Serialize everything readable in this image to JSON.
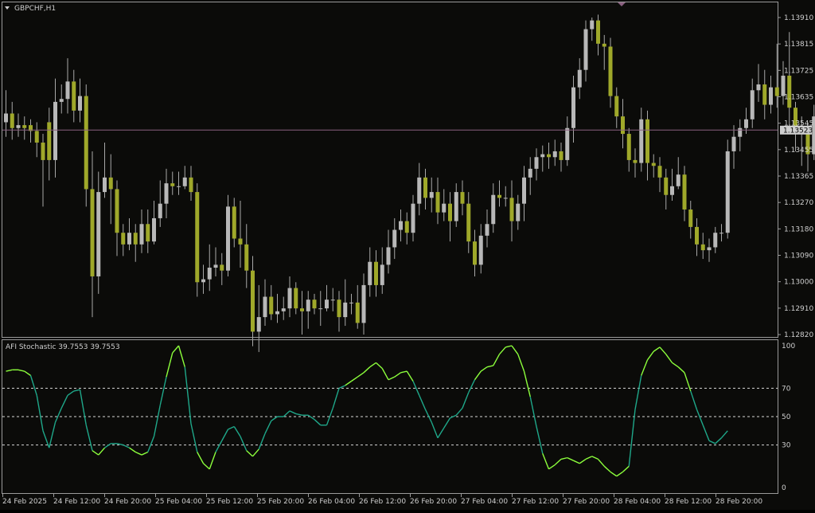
{
  "window": {
    "symbol_label": "GBPCHF,H1",
    "current_price_label": "1.13523"
  },
  "colors": {
    "background": "#0b0b09",
    "frame": "#9a9a9a",
    "text": "#cfcfcf",
    "bull_candle": "#b8b8b8",
    "bear_candle": "#9fa82a",
    "wick": "#a8a8a8",
    "price_line": "#8a6080",
    "stoch_main": "#1fa88a",
    "stoch_highlight": "#8cff3c",
    "level_line": "#d8d8d8"
  },
  "chart_data": [
    {
      "type": "candlestick",
      "title": "GBPCHF,H1",
      "ylim": [
        1.1282,
        1.1391
      ],
      "y_ticks": [
        "1.13910",
        "1.13815",
        "1.13725",
        "1.13635",
        "1.13545",
        "1.13455",
        "1.13365",
        "1.13270",
        "1.13180",
        "1.13090",
        "1.13000",
        "1.12910",
        "1.12820"
      ],
      "current_price": 1.13523,
      "candles": [
        [
          1.1355,
          1.1358,
          1.1366,
          1.135
        ],
        [
          1.1358,
          1.1353,
          1.1362,
          1.1349
        ],
        [
          1.1353,
          1.1354,
          1.1358,
          1.135
        ],
        [
          1.1354,
          1.1353,
          1.1357,
          1.1349
        ],
        [
          1.1354,
          1.1352,
          1.1356,
          1.1348
        ],
        [
          1.1352,
          1.1348,
          1.1355,
          1.1343
        ],
        [
          1.1348,
          1.1342,
          1.1351,
          1.1326
        ],
        [
          1.1355,
          1.1342,
          1.136,
          1.1335
        ],
        [
          1.1342,
          1.1362,
          1.137,
          1.1336
        ],
        [
          1.1362,
          1.1363,
          1.1368,
          1.1358
        ],
        [
          1.1363,
          1.1369,
          1.1377,
          1.1358
        ],
        [
          1.1369,
          1.1359,
          1.1373,
          1.1355
        ],
        [
          1.1359,
          1.1364,
          1.137,
          1.1355
        ],
        [
          1.1364,
          1.1332,
          1.1368,
          1.1326
        ],
        [
          1.1332,
          1.1302,
          1.1345,
          1.1288
        ],
        [
          1.1302,
          1.1331,
          1.1338,
          1.1296
        ],
        [
          1.1331,
          1.1336,
          1.1348,
          1.1329
        ],
        [
          1.1336,
          1.1332,
          1.1344,
          1.132
        ],
        [
          1.1332,
          1.1317,
          1.1335,
          1.1309
        ],
        [
          1.1317,
          1.1313,
          1.132,
          1.1309
        ],
        [
          1.1313,
          1.1317,
          1.1322,
          1.1311
        ],
        [
          1.1317,
          1.1313,
          1.132,
          1.1307
        ],
        [
          1.1313,
          1.132,
          1.1325,
          1.131
        ],
        [
          1.132,
          1.1314,
          1.1325,
          1.131
        ],
        [
          1.1314,
          1.1322,
          1.1328,
          1.1313
        ],
        [
          1.1322,
          1.1327,
          1.1335,
          1.1319
        ],
        [
          1.1327,
          1.1334,
          1.1339,
          1.1322
        ],
        [
          1.1334,
          1.1333,
          1.1338,
          1.133
        ],
        [
          1.1333,
          1.1333,
          1.1338,
          1.133
        ],
        [
          1.1333,
          1.1336,
          1.134,
          1.1332
        ],
        [
          1.1336,
          1.1331,
          1.134,
          1.1328
        ],
        [
          1.1331,
          1.13,
          1.1334,
          1.1295
        ],
        [
          1.13,
          1.1301,
          1.1306,
          1.1296
        ],
        [
          1.1301,
          1.1305,
          1.1313,
          1.1297
        ],
        [
          1.1305,
          1.1306,
          1.1312,
          1.1302
        ],
        [
          1.1306,
          1.1304,
          1.131,
          1.1299
        ],
        [
          1.1304,
          1.1326,
          1.133,
          1.1302
        ],
        [
          1.1326,
          1.1315,
          1.1329,
          1.1312
        ],
        [
          1.1315,
          1.1313,
          1.1328,
          1.1305
        ],
        [
          1.1313,
          1.1304,
          1.132,
          1.1298
        ],
        [
          1.1304,
          1.1283,
          1.1309,
          1.1278
        ],
        [
          1.1283,
          1.1288,
          1.1299,
          1.1276
        ],
        [
          1.1288,
          1.1295,
          1.1301,
          1.1285
        ],
        [
          1.1295,
          1.1289,
          1.1299,
          1.1287
        ],
        [
          1.1289,
          1.129,
          1.1296,
          1.1286
        ],
        [
          1.129,
          1.1291,
          1.1295,
          1.1287
        ],
        [
          1.1291,
          1.1298,
          1.1302,
          1.1288
        ],
        [
          1.1298,
          1.1291,
          1.13,
          1.1289
        ],
        [
          1.1291,
          1.129,
          1.1297,
          1.1282
        ],
        [
          1.129,
          1.1294,
          1.1297,
          1.1284
        ],
        [
          1.1294,
          1.1291,
          1.1296,
          1.1289
        ],
        [
          1.1291,
          1.1291,
          1.1297,
          1.1285
        ],
        [
          1.1291,
          1.1294,
          1.1299,
          1.129
        ],
        [
          1.1294,
          1.1294,
          1.1298,
          1.129
        ],
        [
          1.1294,
          1.1288,
          1.1297,
          1.1283
        ],
        [
          1.1288,
          1.1293,
          1.1301,
          1.1285
        ],
        [
          1.1293,
          1.1293,
          1.1296,
          1.1289
        ],
        [
          1.1293,
          1.1286,
          1.1299,
          1.1284
        ],
        [
          1.1286,
          1.1299,
          1.1303,
          1.1282
        ],
        [
          1.1299,
          1.1307,
          1.1312,
          1.1295
        ],
        [
          1.1307,
          1.1299,
          1.1311,
          1.1295
        ],
        [
          1.1299,
          1.1306,
          1.1312,
          1.1296
        ],
        [
          1.1306,
          1.1312,
          1.1318,
          1.1303
        ],
        [
          1.1312,
          1.1318,
          1.1322,
          1.1308
        ],
        [
          1.1318,
          1.1321,
          1.1325,
          1.1314
        ],
        [
          1.1321,
          1.1317,
          1.1324,
          1.1313
        ],
        [
          1.1317,
          1.1327,
          1.133,
          1.1314
        ],
        [
          1.1327,
          1.1336,
          1.1341,
          1.1323
        ],
        [
          1.1336,
          1.1329,
          1.1339,
          1.1325
        ],
        [
          1.1329,
          1.1331,
          1.1336,
          1.1324
        ],
        [
          1.1331,
          1.1324,
          1.1336,
          1.132
        ],
        [
          1.1324,
          1.1327,
          1.1332,
          1.1321
        ],
        [
          1.1327,
          1.1321,
          1.1331,
          1.1314
        ],
        [
          1.1321,
          1.1331,
          1.1334,
          1.1319
        ],
        [
          1.1331,
          1.1327,
          1.1335,
          1.1323
        ],
        [
          1.1327,
          1.1314,
          1.1331,
          1.131
        ],
        [
          1.1314,
          1.1306,
          1.1318,
          1.1302
        ],
        [
          1.1306,
          1.1316,
          1.132,
          1.1303
        ],
        [
          1.1316,
          1.132,
          1.1325,
          1.1312
        ],
        [
          1.132,
          1.133,
          1.1334,
          1.1317
        ],
        [
          1.133,
          1.1329,
          1.1335,
          1.1326
        ],
        [
          1.1329,
          1.1329,
          1.1333,
          1.1326
        ],
        [
          1.1329,
          1.1321,
          1.1335,
          1.1314
        ],
        [
          1.1321,
          1.1327,
          1.133,
          1.1318
        ],
        [
          1.1327,
          1.1336,
          1.134,
          1.1321
        ],
        [
          1.1336,
          1.1339,
          1.1343,
          1.133
        ],
        [
          1.1339,
          1.1343,
          1.1346,
          1.1335
        ],
        [
          1.1343,
          1.1344,
          1.1347,
          1.1338
        ],
        [
          1.1344,
          1.1343,
          1.1348,
          1.1339
        ],
        [
          1.1343,
          1.1345,
          1.1349,
          1.134
        ],
        [
          1.1345,
          1.1342,
          1.1348,
          1.1338
        ],
        [
          1.1342,
          1.1353,
          1.1357,
          1.134
        ],
        [
          1.1353,
          1.1367,
          1.1371,
          1.1348
        ],
        [
          1.1367,
          1.1373,
          1.1377,
          1.1363
        ],
        [
          1.1373,
          1.1387,
          1.139,
          1.1369
        ],
        [
          1.1387,
          1.139,
          1.1391,
          1.1383
        ],
        [
          1.139,
          1.1382,
          1.1392,
          1.1378
        ],
        [
          1.1382,
          1.1381,
          1.1385,
          1.1373
        ],
        [
          1.1381,
          1.1364,
          1.1384,
          1.136
        ],
        [
          1.1364,
          1.1357,
          1.1367,
          1.1353
        ],
        [
          1.1357,
          1.1351,
          1.1363,
          1.1346
        ],
        [
          1.1351,
          1.1342,
          1.1353,
          1.1338
        ],
        [
          1.1342,
          1.1341,
          1.1346,
          1.1336
        ],
        [
          1.1341,
          1.1356,
          1.136,
          1.1338
        ],
        [
          1.1356,
          1.1341,
          1.1359,
          1.1335
        ],
        [
          1.1341,
          1.134,
          1.1344,
          1.1336
        ],
        [
          1.134,
          1.1336,
          1.1343,
          1.1331
        ],
        [
          1.1336,
          1.133,
          1.1339,
          1.1325
        ],
        [
          1.133,
          1.1333,
          1.1339,
          1.1328
        ],
        [
          1.1333,
          1.1337,
          1.1343,
          1.1332
        ],
        [
          1.1337,
          1.1325,
          1.134,
          1.1321
        ],
        [
          1.1325,
          1.1319,
          1.1328,
          1.1315
        ],
        [
          1.1319,
          1.1313,
          1.1322,
          1.1309
        ],
        [
          1.1313,
          1.1311,
          1.1317,
          1.1308
        ],
        [
          1.1311,
          1.1312,
          1.1315,
          1.1307
        ],
        [
          1.1312,
          1.1317,
          1.1319,
          1.131
        ],
        [
          1.1317,
          1.1317,
          1.132,
          1.1314
        ],
        [
          1.1317,
          1.1345,
          1.1349,
          1.1315
        ],
        [
          1.1345,
          1.135,
          1.1354,
          1.1339
        ],
        [
          1.135,
          1.1353,
          1.1356,
          1.1345
        ],
        [
          1.1353,
          1.1356,
          1.136,
          1.1351
        ],
        [
          1.1356,
          1.1366,
          1.137,
          1.1353
        ],
        [
          1.1366,
          1.1368,
          1.1375,
          1.1362
        ],
        [
          1.1368,
          1.1361,
          1.1373,
          1.1356
        ],
        [
          1.1361,
          1.1367,
          1.1371,
          1.1358
        ],
        [
          1.1367,
          1.1364,
          1.1382,
          1.136
        ],
        [
          1.1364,
          1.1371,
          1.1376,
          1.1361
        ],
        [
          1.1371,
          1.136,
          1.1386,
          1.1351
        ],
        [
          1.136,
          1.1353,
          1.1362,
          1.1345
        ],
        [
          1.1353,
          1.1353,
          1.1357,
          1.134
        ],
        [
          1.1353,
          1.1344,
          1.1355,
          1.1338
        ],
        [
          1.1344,
          1.1357,
          1.1361,
          1.1342
        ],
        [
          1.1357,
          1.1356,
          1.136,
          1.1353
        ],
        [
          1.1356,
          1.1352,
          1.1358,
          1.135
        ]
      ]
    },
    {
      "type": "line",
      "title": "AFI Stochastic 39.7553 39.7553",
      "ylim": [
        0,
        100
      ],
      "y_ticks": [
        "100",
        "70",
        "50",
        "30",
        "0"
      ],
      "levels": [
        70,
        50,
        30
      ],
      "highlight_rule": "values above 70 or below 30 are drawn in the highlight color",
      "values": [
        82,
        83,
        83,
        82,
        79,
        65,
        40,
        28,
        46,
        56,
        65,
        68,
        69,
        44,
        26,
        23,
        28,
        31,
        31,
        30,
        28,
        25,
        23,
        25,
        36,
        58,
        78,
        95,
        100,
        85,
        45,
        25,
        17,
        13,
        25,
        33,
        41,
        43,
        36,
        26,
        22,
        27,
        38,
        47,
        50,
        50,
        54,
        52,
        51,
        51,
        48,
        44,
        44,
        56,
        70,
        72,
        75,
        78,
        81,
        85,
        88,
        84,
        76,
        78,
        81,
        82,
        75,
        65,
        55,
        46,
        35,
        42,
        49,
        51,
        56,
        67,
        76,
        82,
        85,
        86,
        94,
        99,
        100,
        94,
        82,
        64,
        43,
        24,
        13,
        16,
        20,
        21,
        19,
        17,
        20,
        22,
        20,
        15,
        11,
        8,
        11,
        15,
        55,
        79,
        90,
        96,
        99,
        94,
        88,
        85,
        81,
        68,
        55,
        44,
        33,
        31,
        35,
        40
      ]
    }
  ],
  "x_axis": {
    "labels": [
      "24 Feb 2025",
      "24 Feb 12:00",
      "24 Feb 20:00",
      "25 Feb 04:00",
      "25 Feb 12:00",
      "25 Feb 20:00",
      "26 Feb 04:00",
      "26 Feb 12:00",
      "26 Feb 20:00",
      "27 Feb 04:00",
      "27 Feb 12:00",
      "27 Feb 20:00",
      "28 Feb 04:00",
      "28 Feb 12:00",
      "28 Feb 20:00"
    ]
  }
}
